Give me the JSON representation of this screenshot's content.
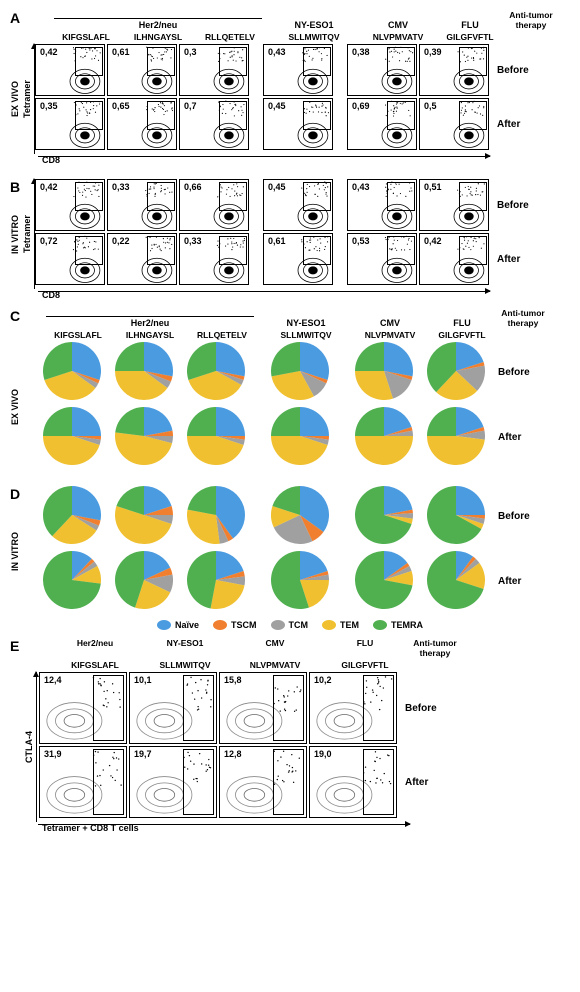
{
  "colors": {
    "naive": "#4b9be0",
    "tscm": "#f08030",
    "tcm": "#a0a0a0",
    "tem": "#f0c030",
    "temra": "#50b050"
  },
  "legend": {
    "naive": "Naïve",
    "tscm": "TSCM",
    "tcm": "TCM",
    "tem": "TEM",
    "temra": "TEMRA"
  },
  "therapy_label": "Anti-tumor\ntherapy",
  "row_labels": {
    "before": "Before",
    "after": "After"
  },
  "antigens": {
    "her2": {
      "group": "Her2/neu",
      "peptides": [
        "KIFGSLAFL",
        "ILHNGAYSL",
        "RLLQETELV"
      ]
    },
    "nyeso": {
      "group": "NY-ESO1",
      "peptides": [
        "SLLMWITQV"
      ]
    },
    "cmv": {
      "group": "CMV",
      "peptides": [
        "NLVPMVATV"
      ]
    },
    "flu": {
      "group": "FLU",
      "peptides": [
        "GILGFVFTL"
      ]
    }
  },
  "panel_A": {
    "condition": "EX VIVO",
    "y_axis": "Tetramer",
    "x_axis": "CD8",
    "before": [
      "0,42",
      "0,61",
      "0,3",
      "0,43",
      "0,38",
      "0,39"
    ],
    "after": [
      "0,35",
      "0,65",
      "0,7",
      "0,45",
      "0,69",
      "0,5"
    ]
  },
  "panel_B": {
    "condition": "IN VITRO",
    "y_axis": "Tetramer",
    "x_axis": "CD8",
    "before": [
      "0,42",
      "0,33",
      "0,66",
      "0,45",
      "0,43",
      "0,51"
    ],
    "after": [
      "0,72",
      "0,22",
      "0,33",
      "0,61",
      "0,53",
      "0,42"
    ]
  },
  "panel_C": {
    "condition": "EX VIVO",
    "before": [
      {
        "naive": 30,
        "tscm": 2,
        "tcm": 3,
        "tem": 35,
        "temra": 30
      },
      {
        "naive": 28,
        "tscm": 3,
        "tcm": 4,
        "tem": 40,
        "temra": 25
      },
      {
        "naive": 28,
        "tscm": 2,
        "tcm": 3,
        "tem": 37,
        "temra": 30
      },
      {
        "naive": 30,
        "tscm": 2,
        "tcm": 10,
        "tem": 30,
        "temra": 28
      },
      {
        "naive": 28,
        "tscm": 2,
        "tcm": 15,
        "tem": 30,
        "temra": 25
      },
      {
        "naive": 20,
        "tscm": 2,
        "tcm": 15,
        "tem": 25,
        "temra": 38
      }
    ],
    "after": [
      {
        "naive": 25,
        "tscm": 2,
        "tcm": 3,
        "tem": 45,
        "temra": 25
      },
      {
        "naive": 22,
        "tscm": 3,
        "tcm": 4,
        "tem": 48,
        "temra": 23
      },
      {
        "naive": 25,
        "tscm": 2,
        "tcm": 3,
        "tem": 45,
        "temra": 25
      },
      {
        "naive": 25,
        "tscm": 2,
        "tcm": 3,
        "tem": 45,
        "temra": 25
      },
      {
        "naive": 20,
        "tscm": 2,
        "tcm": 3,
        "tem": 50,
        "temra": 25
      },
      {
        "naive": 20,
        "tscm": 2,
        "tcm": 5,
        "tem": 48,
        "temra": 25
      }
    ]
  },
  "panel_D": {
    "condition": "IN VITRO",
    "before": [
      {
        "naive": 28,
        "tscm": 3,
        "tcm": 3,
        "tem": 28,
        "temra": 38
      },
      {
        "naive": 20,
        "tscm": 5,
        "tcm": 5,
        "tem": 50,
        "temra": 20
      },
      {
        "naive": 40,
        "tscm": 3,
        "tcm": 5,
        "tem": 30,
        "temra": 22
      },
      {
        "naive": 35,
        "tscm": 8,
        "tcm": 25,
        "tem": 12,
        "temra": 20
      },
      {
        "naive": 22,
        "tscm": 2,
        "tcm": 3,
        "tem": 3,
        "temra": 70
      },
      {
        "naive": 25,
        "tscm": 2,
        "tcm": 3,
        "tem": 3,
        "temra": 67
      }
    ],
    "after": [
      {
        "naive": 12,
        "tscm": 2,
        "tcm": 3,
        "tem": 10,
        "temra": 73
      },
      {
        "naive": 18,
        "tscm": 4,
        "tcm": 10,
        "tem": 23,
        "temra": 45
      },
      {
        "naive": 20,
        "tscm": 3,
        "tcm": 5,
        "tem": 25,
        "temra": 47
      },
      {
        "naive": 20,
        "tscm": 2,
        "tcm": 3,
        "tem": 20,
        "temra": 55
      },
      {
        "naive": 15,
        "tscm": 2,
        "tcm": 3,
        "tem": 8,
        "temra": 72
      },
      {
        "naive": 10,
        "tscm": 2,
        "tcm": 3,
        "tem": 15,
        "temra": 70
      }
    ]
  },
  "panel_E": {
    "y_axis": "CTLA-4",
    "x_axis": "Tetramer + CD8 T cells",
    "cols": [
      {
        "group": "Her2/neu",
        "peptide": "KIFGSLAFL"
      },
      {
        "group": "NY-ESO1",
        "peptide": "SLLMWITQV"
      },
      {
        "group": "CMV",
        "peptide": "NLVPMVATV"
      },
      {
        "group": "FLU",
        "peptide": "GILGFVFTL"
      }
    ],
    "before": [
      "12,4",
      "10,1",
      "15,8",
      "10,2"
    ],
    "after": [
      "31,9",
      "19,7",
      "12,8",
      "19,0"
    ]
  }
}
